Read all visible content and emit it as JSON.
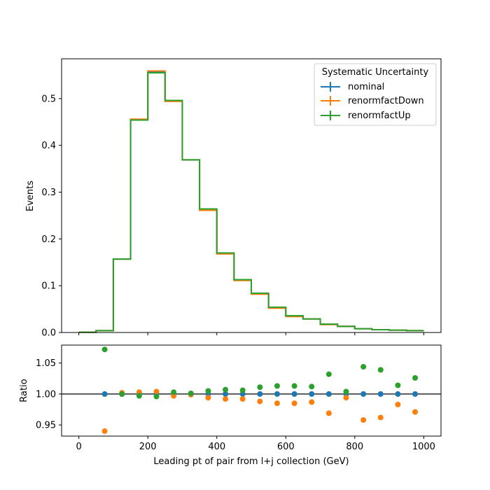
{
  "chart_data": [
    {
      "type": "line",
      "style": "step-histogram",
      "title": "",
      "xlabel": "",
      "ylabel": "Events",
      "xlim": [
        -50,
        1050
      ],
      "ylim": [
        0,
        0.585
      ],
      "xticks": [
        0,
        200,
        400,
        600,
        800,
        1000
      ],
      "xtick_labels_visible": false,
      "yticks": [
        0.0,
        0.1,
        0.2,
        0.3,
        0.4,
        0.5
      ],
      "ytick_labels": [
        "0.0",
        "0.1",
        "0.2",
        "0.3",
        "0.4",
        "0.5"
      ],
      "grid": false,
      "legend": {
        "title": "Systematic Uncertainty",
        "placement": "top-right",
        "entries": [
          "nominal",
          "renormfactDown",
          "renormfactUp"
        ]
      },
      "bin_edges": [
        0,
        50,
        100,
        150,
        200,
        250,
        300,
        350,
        400,
        450,
        500,
        550,
        600,
        650,
        700,
        750,
        800,
        850,
        900,
        950,
        1000
      ],
      "series": [
        {
          "name": "nominal",
          "color": "#1f77b4",
          "values": [
            0.0005,
            0.004,
            0.157,
            0.455,
            0.557,
            0.495,
            0.369,
            0.263,
            0.169,
            0.112,
            0.083,
            0.053,
            0.035,
            0.029,
            0.017,
            0.013,
            0.008,
            0.006,
            0.005,
            0.004
          ]
        },
        {
          "name": "renormfactDown",
          "color": "#ff7f0e",
          "values": [
            0.0005,
            0.004,
            0.157,
            0.456,
            0.559,
            0.494,
            0.369,
            0.261,
            0.168,
            0.111,
            0.082,
            0.052,
            0.034,
            0.029,
            0.017,
            0.013,
            0.008,
            0.006,
            0.005,
            0.004
          ]
        },
        {
          "name": "renormfactUp",
          "color": "#2ca02c",
          "values": [
            0.0005,
            0.004,
            0.157,
            0.454,
            0.555,
            0.496,
            0.369,
            0.264,
            0.17,
            0.113,
            0.084,
            0.054,
            0.036,
            0.029,
            0.018,
            0.013,
            0.008,
            0.006,
            0.005,
            0.004
          ]
        }
      ]
    },
    {
      "type": "scatter",
      "title": "",
      "xlabel": "Leading pt of pair from l+j collection (GeV)",
      "ylabel": "Ratio",
      "xlim": [
        -50,
        1050
      ],
      "ylim": [
        0.932,
        1.079
      ],
      "xticks": [
        0,
        200,
        400,
        600,
        800,
        1000
      ],
      "xtick_labels": [
        "0",
        "200",
        "400",
        "600",
        "800",
        "1000"
      ],
      "yticks": [
        0.95,
        1.0,
        1.05
      ],
      "ytick_labels": [
        "0.95",
        "1.00",
        "1.05"
      ],
      "reference_line": 1.0,
      "grid": false,
      "x": [
        75,
        125,
        175,
        225,
        275,
        325,
        375,
        425,
        475,
        525,
        575,
        625,
        675,
        725,
        775,
        825,
        875,
        925,
        975
      ],
      "series": [
        {
          "name": "nominal",
          "color": "#1f77b4",
          "values": [
            1.0,
            1.0,
            1.0,
            1.0,
            1.0,
            1.0,
            1.0,
            1.0,
            1.0,
            1.0,
            1.0,
            1.0,
            1.0,
            1.0,
            1.0,
            1.0,
            1.0,
            1.0,
            1.0
          ]
        },
        {
          "name": "renormfactDown",
          "color": "#ff7f0e",
          "values": [
            0.94,
            1.002,
            1.003,
            1.004,
            0.997,
            0.999,
            0.994,
            0.992,
            0.992,
            0.988,
            0.985,
            0.985,
            0.987,
            0.969,
            0.994,
            0.958,
            0.962,
            0.983,
            0.971
          ]
        },
        {
          "name": "renormfactUp",
          "color": "#2ca02c",
          "values": [
            1.072,
            1.0,
            0.997,
            0.996,
            1.003,
            1.001,
            1.005,
            1.007,
            1.006,
            1.011,
            1.013,
            1.013,
            1.012,
            1.032,
            1.004,
            1.044,
            1.039,
            1.014,
            1.026
          ]
        }
      ]
    }
  ]
}
